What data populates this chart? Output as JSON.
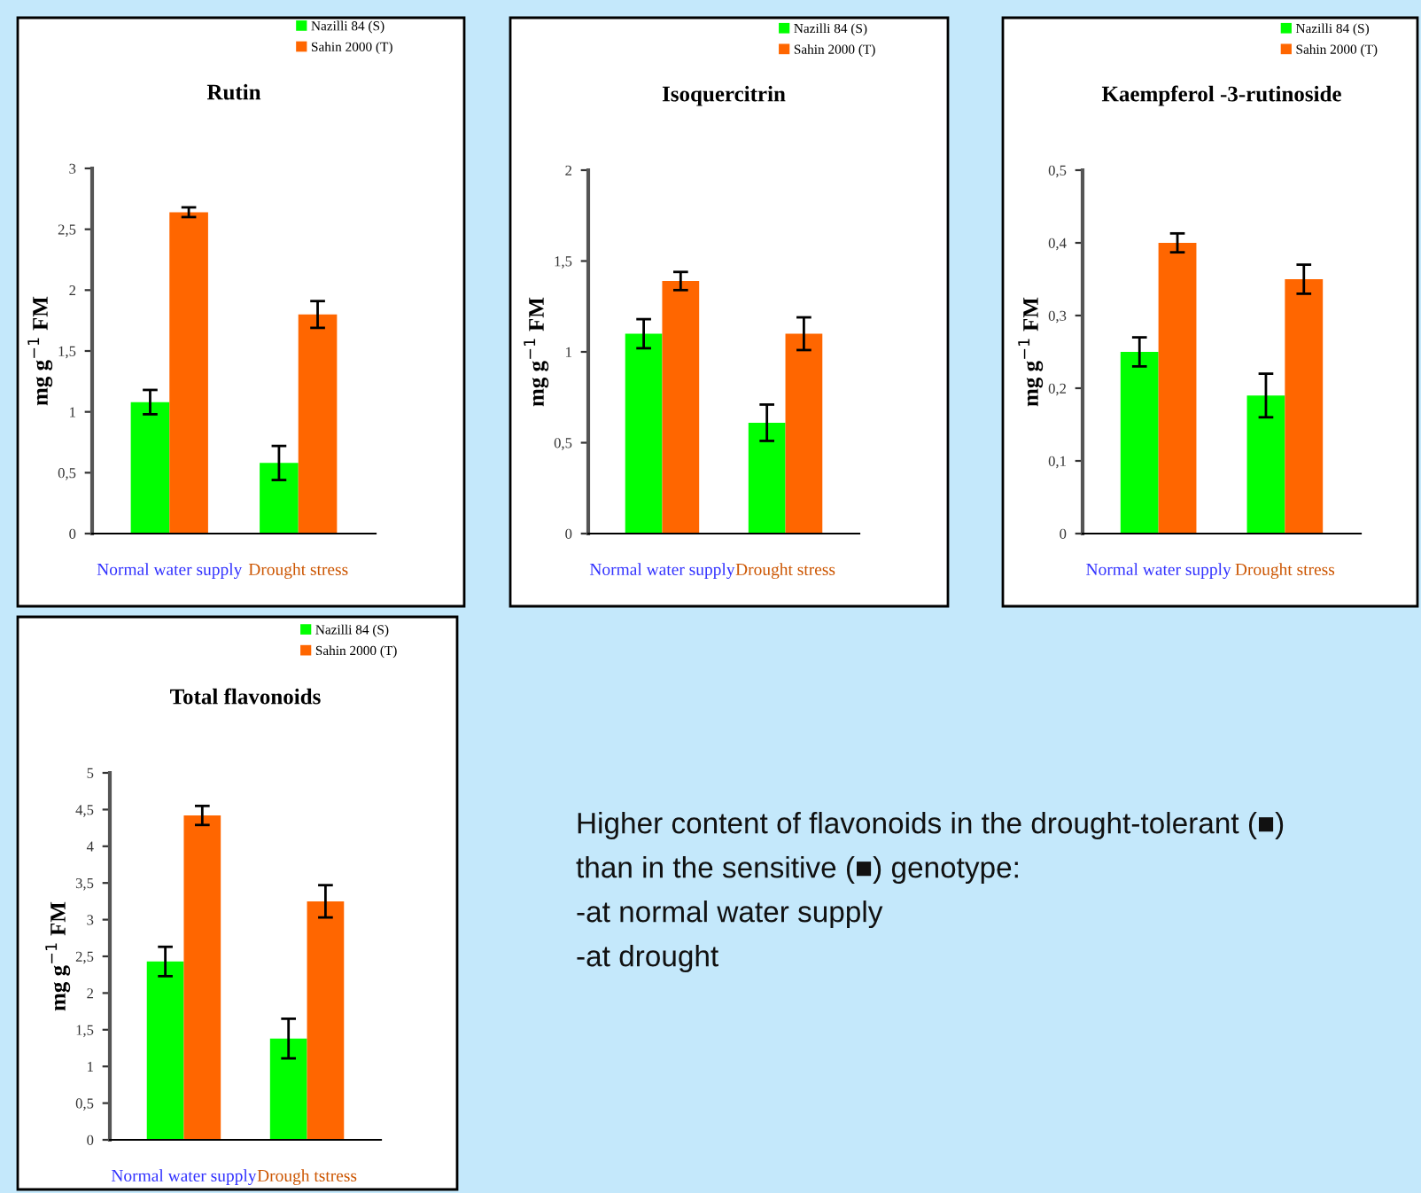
{
  "chart_data": [
    {
      "type": "bar",
      "title": "Rutin",
      "ylabel": "mg g$^{−1}$ FM",
      "categories": [
        "Normal water supply",
        "Drought stress"
      ],
      "series": [
        {
          "name": "Nazilli 84 (S)",
          "color": "#00ff00",
          "values": [
            1.08,
            0.58
          ],
          "errors": [
            0.1,
            0.14
          ]
        },
        {
          "name": "Sahin 2000 (T)",
          "color": "#ff6600",
          "values": [
            2.64,
            1.8
          ],
          "errors": [
            0.04,
            0.11
          ]
        }
      ],
      "ylim": [
        0,
        3
      ],
      "yticks": [
        0,
        {
          "value": 0.5,
          "label": "0,5"
        },
        1,
        {
          "value": 1.5,
          "label": "1,5"
        },
        2,
        {
          "value": 2.5,
          "label": "2,5"
        },
        3
      ],
      "legend": "top right",
      "grid": false
    },
    {
      "type": "bar",
      "title": "Isoquercitrin",
      "ylabel": "mg g$^{−1}$ FM",
      "categories": [
        "Normal water supply",
        "Drought stress"
      ],
      "series": [
        {
          "name": "Nazilli 84 (S)",
          "color": "#00ff00",
          "values": [
            1.1,
            0.61
          ],
          "errors": [
            0.08,
            0.1
          ]
        },
        {
          "name": "Sahin 2000 (T)",
          "color": "#ff6600",
          "values": [
            1.39,
            1.1
          ],
          "errors": [
            0.05,
            0.09
          ]
        }
      ],
      "ylim": [
        0,
        2
      ],
      "yticks": [
        0,
        {
          "value": 0.5,
          "label": "0,5"
        },
        1,
        {
          "value": 1.5,
          "label": "1,5"
        },
        2
      ],
      "legend": "top right",
      "grid": false
    },
    {
      "type": "bar",
      "title": "Kaempferol -3-rutinoside",
      "ylabel": "mg g$^{−1}$ FM",
      "categories": [
        "Normal water supply",
        "Drought stress"
      ],
      "series": [
        {
          "name": "Nazilli 84 (S)",
          "color": "#00ff00",
          "values": [
            0.25,
            0.19
          ],
          "errors": [
            0.02,
            0.03
          ]
        },
        {
          "name": "Sahin 2000 (T)",
          "color": "#ff6600",
          "values": [
            0.4,
            0.35
          ],
          "errors": [
            0.013,
            0.02
          ]
        }
      ],
      "ylim": [
        0,
        0.5
      ],
      "yticks": [
        0,
        {
          "value": 0.1,
          "label": "0,1"
        },
        {
          "value": 0.2,
          "label": "0,2"
        },
        {
          "value": 0.3,
          "label": "0,3"
        },
        {
          "value": 0.4,
          "label": "0,4"
        },
        {
          "value": 0.5,
          "label": "0,5"
        }
      ],
      "legend": "top right",
      "grid": false
    },
    {
      "type": "bar",
      "title": "Total flavonoids",
      "ylabel": "mg g$^{−1}$ FM",
      "categories": [
        "Normal water supply",
        "Drough tstress"
      ],
      "series": [
        {
          "name": "Nazilli 84 (S)",
          "color": "#00ff00",
          "values": [
            2.43,
            1.38
          ],
          "errors": [
            0.2,
            0.27
          ]
        },
        {
          "name": "Sahin 2000 (T)",
          "color": "#ff6600",
          "values": [
            4.42,
            3.25
          ],
          "errors": [
            0.13,
            0.22
          ]
        }
      ],
      "ylim": [
        0,
        5
      ],
      "yticks": [
        0,
        {
          "value": 0.5,
          "label": "0,5"
        },
        1,
        {
          "value": 1.5,
          "label": "1,5"
        },
        2,
        {
          "value": 2.5,
          "label": "2,5"
        },
        3,
        {
          "value": 3.5,
          "label": "3,5"
        },
        4,
        {
          "value": 4.5,
          "label": "4,5"
        },
        5
      ],
      "legend": "top right",
      "grid": false
    },
    {
      "type": "other",
      "annotations": [
        "Higher content of flavonoids in the drought-tolerant (■)",
        "than in the sensitive (■) genotype:",
        "-at normal water supply",
        "-at drought"
      ]
    }
  ]
}
